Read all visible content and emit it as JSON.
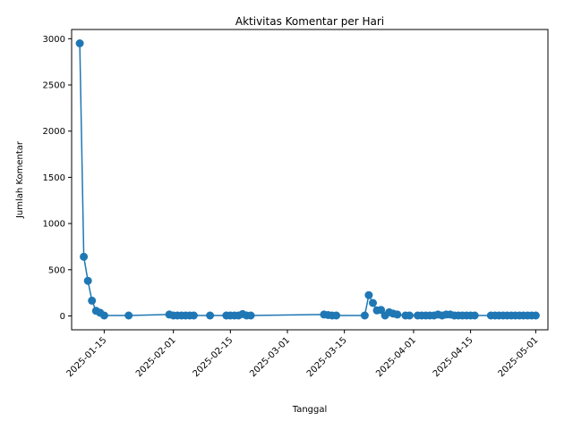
{
  "chart_data": {
    "type": "line",
    "title": "Aktivitas Komentar per Hari",
    "xlabel": "Tanggal",
    "ylabel": "Jumlah Komentar",
    "color": "#1f77b4",
    "grid": false,
    "legend": "none",
    "xlim": [
      "2025-01-07",
      "2025-05-04"
    ],
    "ylim": [
      -150,
      3100
    ],
    "yticks": [
      0,
      500,
      1000,
      1500,
      2000,
      2500,
      3000
    ],
    "xticks": [
      "2025-01-15",
      "2025-02-01",
      "2025-02-15",
      "2025-03-01",
      "2025-03-15",
      "2025-04-01",
      "2025-04-15",
      "2025-05-01"
    ],
    "series": [
      {
        "x": [
          "2025-01-09",
          "2025-01-10",
          "2025-01-11",
          "2025-01-12",
          "2025-01-13",
          "2025-01-14",
          "2025-01-15",
          "2025-01-21",
          "2025-01-31",
          "2025-02-01",
          "2025-02-02",
          "2025-02-03",
          "2025-02-04",
          "2025-02-05",
          "2025-02-06",
          "2025-02-10",
          "2025-02-14",
          "2025-02-15",
          "2025-02-16",
          "2025-02-17",
          "2025-02-18",
          "2025-02-19",
          "2025-02-20",
          "2025-03-10",
          "2025-03-11",
          "2025-03-12",
          "2025-03-13",
          "2025-03-20",
          "2025-03-21",
          "2025-03-22",
          "2025-03-23",
          "2025-03-24",
          "2025-03-25",
          "2025-03-26",
          "2025-03-27",
          "2025-03-28",
          "2025-03-30",
          "2025-03-31",
          "2025-04-02",
          "2025-04-03",
          "2025-04-04",
          "2025-04-05",
          "2025-04-06",
          "2025-04-07",
          "2025-04-08",
          "2025-04-09",
          "2025-04-10",
          "2025-04-11",
          "2025-04-12",
          "2025-04-13",
          "2025-04-14",
          "2025-04-15",
          "2025-04-16",
          "2025-04-20",
          "2025-04-21",
          "2025-04-22",
          "2025-04-23",
          "2025-04-24",
          "2025-04-25",
          "2025-04-26",
          "2025-04-27",
          "2025-04-28",
          "2025-04-29",
          "2025-04-30",
          "2025-05-01"
        ],
        "values": [
          2950,
          640,
          380,
          165,
          55,
          35,
          5,
          5,
          15,
          5,
          5,
          5,
          5,
          5,
          5,
          5,
          5,
          5,
          5,
          5,
          20,
          5,
          5,
          15,
          10,
          5,
          5,
          5,
          225,
          140,
          60,
          65,
          5,
          40,
          25,
          15,
          5,
          5,
          5,
          5,
          5,
          5,
          5,
          15,
          5,
          15,
          15,
          5,
          5,
          5,
          5,
          5,
          5,
          5,
          5,
          5,
          5,
          5,
          5,
          5,
          5,
          5,
          5,
          5,
          5
        ]
      }
    ]
  }
}
